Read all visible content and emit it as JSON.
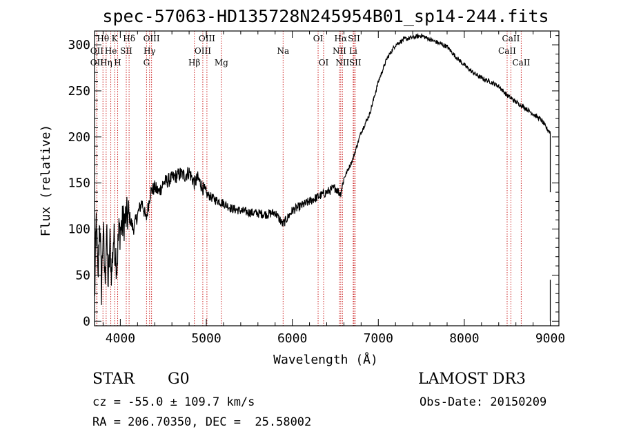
{
  "chart_data": {
    "type": "line",
    "title": "spec-57063-HD135728N245954B01_sp14-244.fits",
    "xlabel": "Wavelength (Å)",
    "ylabel": "Flux (relative)",
    "xlim": [
      3700,
      9100
    ],
    "ylim": [
      -5,
      315
    ],
    "xticks": [
      4000,
      5000,
      6000,
      7000,
      8000,
      9000
    ],
    "yticks": [
      0,
      50,
      100,
      150,
      200,
      250,
      300
    ],
    "grid": false,
    "series": [
      {
        "name": "spectrum",
        "x": [
          3700,
          3720,
          3740,
          3760,
          3780,
          3800,
          3820,
          3840,
          3860,
          3880,
          3900,
          3920,
          3940,
          3960,
          3980,
          4000,
          4050,
          4100,
          4150,
          4200,
          4250,
          4300,
          4350,
          4400,
          4450,
          4500,
          4600,
          4700,
          4750,
          4800,
          4860,
          4900,
          5000,
          5100,
          5200,
          5300,
          5400,
          5500,
          5600,
          5700,
          5800,
          5890,
          6000,
          6100,
          6200,
          6300,
          6400,
          6500,
          6560,
          6600,
          6700,
          6800,
          6900,
          7000,
          7100,
          7200,
          7300,
          7400,
          7500,
          7600,
          7700,
          7800,
          7900,
          8000,
          8100,
          8200,
          8300,
          8400,
          8500,
          8600,
          8700,
          8800,
          8900,
          8950,
          9000
        ],
        "y": [
          20,
          110,
          40,
          115,
          35,
          100,
          45,
          95,
          40,
          85,
          50,
          90,
          80,
          60,
          95,
          100,
          110,
          115,
          100,
          115,
          130,
          110,
          140,
          145,
          140,
          150,
          155,
          160,
          158,
          162,
          150,
          155,
          138,
          132,
          128,
          122,
          120,
          118,
          117,
          116,
          118,
          105,
          120,
          125,
          130,
          135,
          140,
          145,
          138,
          155,
          175,
          205,
          225,
          260,
          285,
          300,
          306,
          308,
          310,
          306,
          302,
          298,
          287,
          278,
          270,
          264,
          260,
          255,
          245,
          238,
          232,
          225,
          218,
          210,
          205
        ]
      }
    ],
    "line_markers": [
      {
        "label": "Hθ",
        "x": 3798,
        "row": 1
      },
      {
        "label": "K",
        "x": 3934,
        "row": 1
      },
      {
        "label": "Hδ",
        "x": 4102,
        "row": 1
      },
      {
        "label": "OII",
        "x": 3727,
        "row": 2
      },
      {
        "label": "He",
        "x": 3889,
        "row": 2
      },
      {
        "label": "SII",
        "x": 4069,
        "row": 2
      },
      {
        "label": "OII",
        "x": 3727,
        "row": 3
      },
      {
        "label": "Hη",
        "x": 3835,
        "row": 3
      },
      {
        "label": "H",
        "x": 3969,
        "row": 3
      },
      {
        "label": "OIII",
        "x": 4363,
        "row": 1
      },
      {
        "label": "Hγ",
        "x": 4340,
        "row": 2
      },
      {
        "label": "G",
        "x": 4305,
        "row": 3
      },
      {
        "label": "OIII",
        "x": 5007,
        "row": 1
      },
      {
        "label": "OIII",
        "x": 4959,
        "row": 2
      },
      {
        "label": "Hβ",
        "x": 4861,
        "row": 3
      },
      {
        "label": "Mg",
        "x": 5175,
        "row": 3
      },
      {
        "label": "Na",
        "x": 5893,
        "row": 2
      },
      {
        "label": "OI",
        "x": 6300,
        "row": 1
      },
      {
        "label": "OI",
        "x": 6364,
        "row": 3
      },
      {
        "label": "Hα",
        "x": 6563,
        "row": 1
      },
      {
        "label": "SII",
        "x": 6717,
        "row": 1
      },
      {
        "label": "NII",
        "x": 6548,
        "row": 2
      },
      {
        "label": "Li",
        "x": 6708,
        "row": 2
      },
      {
        "label": "NII",
        "x": 6583,
        "row": 3
      },
      {
        "label": "SII",
        "x": 6731,
        "row": 3
      },
      {
        "label": "CaII",
        "x": 8542,
        "row": 1
      },
      {
        "label": "CaII",
        "x": 8498,
        "row": 2
      },
      {
        "label": "CaII",
        "x": 8662,
        "row": 3
      }
    ]
  },
  "info": {
    "object_class": "STAR",
    "subclass": "G0",
    "survey": "LAMOST DR3",
    "velocity": "cz = -55.0 ± 109.7 km/s",
    "obs_date": "Obs-Date: 20150209",
    "coords": "RA = 206.70350, DEC =  25.58002"
  },
  "colors": {
    "marker": "#cc2222",
    "spectrum": "#000000"
  }
}
